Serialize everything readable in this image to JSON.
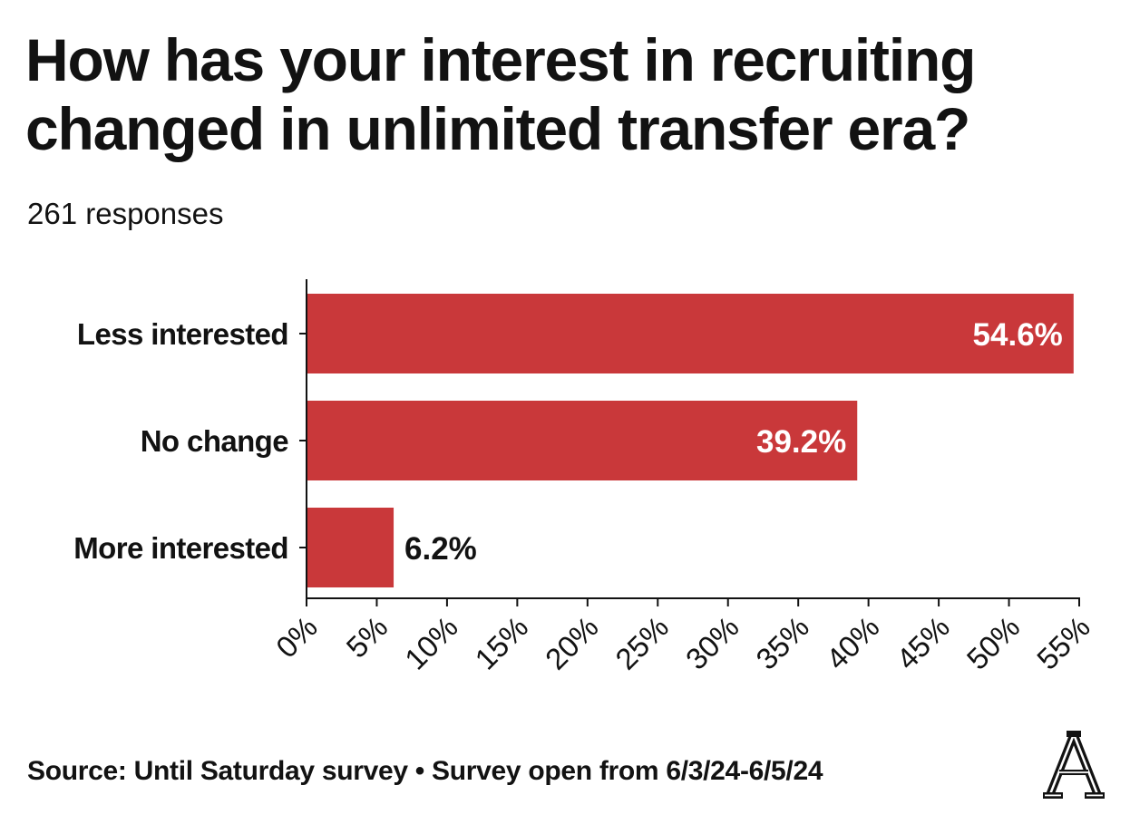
{
  "title": "How has your interest in recruiting changed in unlimited transfer era?",
  "subtitle": "261 responses",
  "footer": {
    "source": "Source: Until Saturday survey • Survey open from 6/3/24-6/5/24"
  },
  "logo": {
    "icon": "athletic-logo-icon",
    "letter": "A"
  },
  "colors": {
    "bar": "#c9383a",
    "text": "#121212",
    "label_inside": "#ffffff"
  },
  "chart_data": {
    "type": "bar",
    "orientation": "horizontal",
    "categories": [
      "Less interested",
      "No change",
      "More interested"
    ],
    "values": [
      54.6,
      39.2,
      6.2
    ],
    "value_labels": [
      "54.6%",
      "39.2%",
      "6.2%"
    ],
    "xlim": [
      0,
      55
    ],
    "x_ticks": [
      0,
      5,
      10,
      15,
      20,
      25,
      30,
      35,
      40,
      45,
      50,
      55
    ],
    "x_tick_labels": [
      "0%",
      "5%",
      "10%",
      "15%",
      "20%",
      "25%",
      "30%",
      "35%",
      "40%",
      "45%",
      "50%",
      "55%"
    ],
    "xlabel": "",
    "ylabel": "",
    "grid": false,
    "legend": "none"
  }
}
